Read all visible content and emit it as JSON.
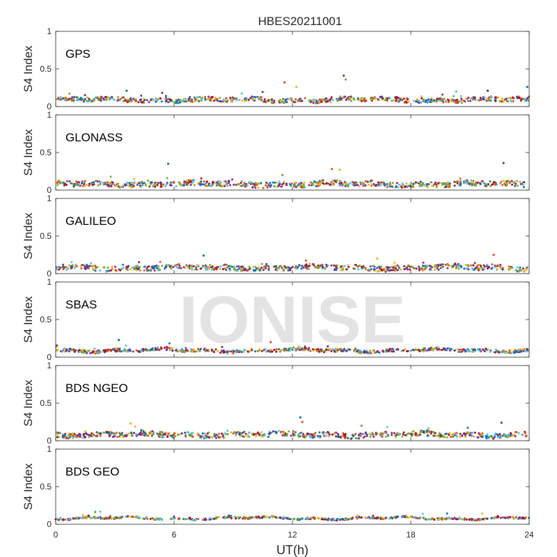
{
  "chart_data": {
    "type": "scatter",
    "title": "HBES20211001",
    "xlabel": "UT(h)",
    "ylabel": "S4 Index",
    "xlim": [
      0,
      24
    ],
    "ylim": [
      0,
      1
    ],
    "x_ticks": [
      "0",
      "6",
      "12",
      "18",
      "24"
    ],
    "y_ticks": [
      "0",
      "0.5",
      "1"
    ],
    "watermark": "IONISE",
    "series_colors": [
      "#0072bd",
      "#d95319",
      "#edb120",
      "#7e2f8e",
      "#77ac30",
      "#4dbeee",
      "#a2142f"
    ],
    "panels": [
      {
        "name": "GPS",
        "baseline": 0.09,
        "spread": 0.03,
        "density": 700,
        "outliers": [
          [
            3.6,
            0.21
          ],
          [
            11.6,
            0.32
          ],
          [
            12.2,
            0.26
          ],
          [
            14.6,
            0.41
          ],
          [
            14.7,
            0.36
          ],
          [
            20.3,
            0.2
          ],
          [
            21.9,
            0.21
          ],
          [
            23.9,
            0.26
          ]
        ]
      },
      {
        "name": "GLONASS",
        "baseline": 0.08,
        "spread": 0.035,
        "density": 700,
        "outliers": [
          [
            5.7,
            0.35
          ],
          [
            14.0,
            0.28
          ],
          [
            14.4,
            0.27
          ],
          [
            22.7,
            0.36
          ],
          [
            11.5,
            0.2
          ]
        ]
      },
      {
        "name": "GALILEO",
        "baseline": 0.08,
        "spread": 0.035,
        "density": 650,
        "outliers": [
          [
            7.5,
            0.24
          ],
          [
            22.2,
            0.25
          ],
          [
            16.3,
            0.2
          ]
        ]
      },
      {
        "name": "SBAS",
        "baseline": 0.09,
        "spread": 0.02,
        "density": 650,
        "outliers": [
          [
            3.2,
            0.23
          ],
          [
            10.9,
            0.2
          ]
        ]
      },
      {
        "name": "BDS NGEO",
        "baseline": 0.08,
        "spread": 0.035,
        "density": 700,
        "outliers": [
          [
            12.4,
            0.31
          ],
          [
            12.5,
            0.25
          ],
          [
            3.8,
            0.23
          ],
          [
            22.6,
            0.24
          ],
          [
            15.5,
            0.2
          ]
        ]
      },
      {
        "name": "BDS GEO",
        "baseline": 0.08,
        "spread": 0.012,
        "density": 600,
        "outliers": []
      }
    ]
  }
}
